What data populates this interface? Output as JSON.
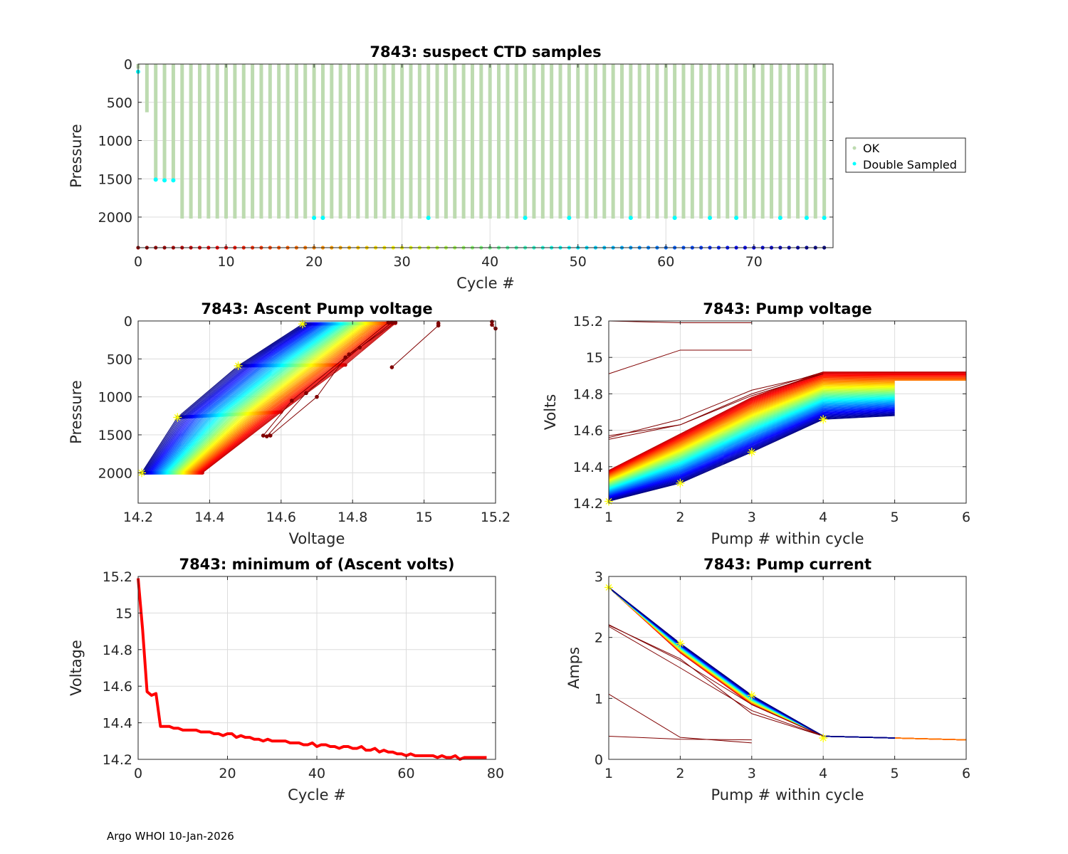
{
  "footer": "Argo WHOI 10-Jan-2026",
  "colors": {
    "ok": "#bddbb0",
    "double_sampled": "#00ffff",
    "min_line": "#ff0000",
    "marker": "#ffff00",
    "grid": "#dcdcdc",
    "axis": "#262626"
  },
  "chart_data": [
    {
      "id": "suspect-ctd",
      "type": "scatter",
      "title": "7843: suspect CTD samples",
      "xlabel": "Cycle #",
      "ylabel": "Pressure",
      "xlim": [
        0,
        79
      ],
      "ylim": [
        2400,
        0
      ],
      "y_reversed": true,
      "xticks": [
        0,
        10,
        20,
        30,
        40,
        50,
        60,
        70
      ],
      "yticks": [
        0,
        500,
        1000,
        1500,
        2000
      ],
      "grid": true,
      "legend": {
        "placement": "outside-right",
        "entries": [
          "OK",
          "Double Sampled"
        ]
      },
      "cycles_first": 0,
      "cycles_last": 78,
      "ok_profile_max_pressure": {
        "0": 60,
        "1": 630,
        "2": 1510,
        "3": 1520,
        "4": 1520,
        "default": 2020
      },
      "double_sampled": [
        {
          "cycle": 0,
          "pressure": 100
        },
        {
          "cycle": 2,
          "pressure": 1510
        },
        {
          "cycle": 3,
          "pressure": 1520
        },
        {
          "cycle": 4,
          "pressure": 1520
        },
        {
          "cycle": 20,
          "pressure": 2010
        },
        {
          "cycle": 21,
          "pressure": 2010
        },
        {
          "cycle": 33,
          "pressure": 2010
        },
        {
          "cycle": 44,
          "pressure": 2010
        },
        {
          "cycle": 49,
          "pressure": 2010
        },
        {
          "cycle": 56,
          "pressure": 2010
        },
        {
          "cycle": 61,
          "pressure": 2010
        },
        {
          "cycle": 65,
          "pressure": 2010
        },
        {
          "cycle": 68,
          "pressure": 2010
        },
        {
          "cycle": 73,
          "pressure": 2010
        },
        {
          "cycle": 76,
          "pressure": 2010
        },
        {
          "cycle": 78,
          "pressure": 2010
        }
      ],
      "cycle_marker_pressure": 2400
    },
    {
      "id": "ascent-pump-voltage",
      "type": "line",
      "title": "7843: Ascent Pump voltage",
      "xlabel": "Voltage",
      "ylabel": "Pressure",
      "xlim": [
        14.2,
        15.2
      ],
      "ylim": [
        2400,
        0
      ],
      "y_reversed": true,
      "xticks": [
        14.2,
        14.4,
        14.6,
        14.8,
        15,
        15.2
      ],
      "xticklabels": [
        "14.2",
        "14.4",
        "14.6",
        "14.8",
        "15",
        "15.2"
      ],
      "yticks": [
        0,
        500,
        1000,
        1500,
        2000
      ],
      "grid": true,
      "colormap": "jet-by-cycle",
      "series_note": "one line per cycle 5-78; points at pressures ~2000, ~1250, ~580, ~50",
      "typical_first_cycle": {
        "voltage": [
          14.38,
          14.6,
          14.78,
          14.92
        ],
        "pressure": [
          2000,
          1200,
          580,
          30
        ]
      },
      "typical_last_cycle": {
        "voltage": [
          14.21,
          14.31,
          14.48,
          14.66
        ],
        "pressure": [
          2000,
          1270,
          590,
          40
        ]
      },
      "early_cycles": [
        {
          "voltage": [
            15.19,
            15.19,
            15.2
          ],
          "pressure": [
            10,
            50,
            100
          ]
        },
        {
          "voltage": [
            14.91,
            15.04,
            15.04
          ],
          "pressure": [
            610,
            60,
            30
          ]
        },
        {
          "voltage": [
            14.55,
            14.63,
            14.79,
            14.9
          ],
          "pressure": [
            1510,
            1050,
            440,
            20
          ]
        },
        {
          "voltage": [
            14.56,
            14.67,
            14.82,
            14.91
          ],
          "pressure": [
            1520,
            950,
            350,
            20
          ]
        },
        {
          "voltage": [
            14.57,
            14.7,
            14.78,
            14.92
          ],
          "pressure": [
            1510,
            1000,
            480,
            20
          ]
        }
      ],
      "highlight_points": [
        {
          "voltage": 14.21,
          "pressure": 2000
        },
        {
          "voltage": 14.31,
          "pressure": 1270
        },
        {
          "voltage": 14.48,
          "pressure": 590
        },
        {
          "voltage": 14.66,
          "pressure": 40
        }
      ]
    },
    {
      "id": "pump-voltage",
      "type": "line",
      "title": "7843: Pump voltage",
      "xlabel": "Pump # within cycle",
      "ylabel": "Volts",
      "xlim": [
        1,
        6
      ],
      "ylim": [
        14.2,
        15.2
      ],
      "xticks": [
        1,
        2,
        3,
        4,
        5,
        6
      ],
      "yticks": [
        14.2,
        14.4,
        14.6,
        14.8,
        15,
        15.2
      ],
      "yticklabels": [
        "14.2",
        "14.4",
        "14.6",
        "14.8",
        "15",
        "15.2"
      ],
      "grid": true,
      "colormap": "jet-by-cycle",
      "typical_first_cycle": [
        14.38,
        14.58,
        14.78,
        14.92,
        14.92,
        14.92
      ],
      "typical_last_cycle": [
        14.21,
        14.31,
        14.48,
        14.66,
        14.68
      ],
      "early_cycles": [
        [
          15.2,
          15.19,
          15.19
        ],
        [
          14.91,
          15.04,
          15.04
        ],
        [
          14.56,
          14.66,
          14.82,
          14.91
        ],
        [
          14.57,
          14.63,
          14.8,
          14.92
        ],
        [
          14.55,
          14.63,
          14.79,
          14.91
        ]
      ],
      "highlight_points": [
        {
          "pump": 1,
          "volts": 14.21
        },
        {
          "pump": 2,
          "volts": 14.31
        },
        {
          "pump": 3,
          "volts": 14.48
        },
        {
          "pump": 4,
          "volts": 14.66
        }
      ]
    },
    {
      "id": "min-ascent-volts",
      "type": "line",
      "title": "7843: minimum of (Ascent volts)",
      "xlabel": "Cycle #",
      "ylabel": "Voltage",
      "xlim": [
        0,
        80
      ],
      "ylim": [
        14.2,
        15.2
      ],
      "xticks": [
        0,
        20,
        40,
        60,
        80
      ],
      "yticks": [
        14.2,
        14.4,
        14.6,
        14.8,
        15,
        15.2
      ],
      "yticklabels": [
        "14.2",
        "14.4",
        "14.6",
        "14.8",
        "15",
        "15.2"
      ],
      "grid": true,
      "x": [
        0,
        1,
        2,
        3,
        4,
        5,
        6,
        7,
        8,
        9,
        10,
        11,
        12,
        13,
        14,
        15,
        16,
        17,
        18,
        19,
        20,
        21,
        22,
        23,
        24,
        25,
        26,
        27,
        28,
        29,
        30,
        31,
        32,
        33,
        34,
        35,
        36,
        37,
        38,
        39,
        40,
        41,
        42,
        43,
        44,
        45,
        46,
        47,
        48,
        49,
        50,
        51,
        52,
        53,
        54,
        55,
        56,
        57,
        58,
        59,
        60,
        61,
        62,
        63,
        64,
        65,
        66,
        67,
        68,
        69,
        70,
        71,
        72,
        73,
        74,
        75,
        76,
        77,
        78
      ],
      "values": [
        15.19,
        14.91,
        14.57,
        14.55,
        14.56,
        14.38,
        14.38,
        14.38,
        14.37,
        14.37,
        14.36,
        14.36,
        14.36,
        14.36,
        14.35,
        14.35,
        14.35,
        14.34,
        14.34,
        14.33,
        14.34,
        14.34,
        14.32,
        14.33,
        14.32,
        14.32,
        14.31,
        14.31,
        14.3,
        14.31,
        14.3,
        14.3,
        14.3,
        14.3,
        14.29,
        14.29,
        14.29,
        14.28,
        14.28,
        14.29,
        14.27,
        14.28,
        14.28,
        14.27,
        14.27,
        14.26,
        14.27,
        14.27,
        14.26,
        14.26,
        14.27,
        14.25,
        14.25,
        14.26,
        14.24,
        14.25,
        14.24,
        14.24,
        14.23,
        14.23,
        14.22,
        14.23,
        14.22,
        14.22,
        14.22,
        14.22,
        14.22,
        14.21,
        14.22,
        14.21,
        14.21,
        14.22,
        14.2,
        14.21,
        14.21,
        14.21,
        14.21,
        14.21,
        14.21
      ]
    },
    {
      "id": "pump-current",
      "type": "line",
      "title": "7843: Pump current",
      "xlabel": "Pump # within cycle",
      "ylabel": "Amps",
      "xlim": [
        1,
        6
      ],
      "ylim": [
        0,
        3
      ],
      "xticks": [
        1,
        2,
        3,
        4,
        5,
        6
      ],
      "yticks": [
        0,
        1,
        2,
        3
      ],
      "grid": true,
      "colormap": "jet-by-cycle",
      "typical_cycle": [
        2.82,
        1.85,
        1.0,
        0.38,
        0.35,
        0.32
      ],
      "early_cycles": [
        [
          0.38,
          0.33,
          0.32
        ],
        [
          1.07,
          0.36,
          0.27
        ],
        [
          2.2,
          1.65,
          0.75,
          0.38
        ],
        [
          2.18,
          1.5,
          0.8,
          0.38
        ],
        [
          2.21,
          1.62,
          0.9,
          0.38
        ]
      ],
      "highlight_points": [
        {
          "pump": 1,
          "amps": 2.82
        },
        {
          "pump": 2,
          "amps": 1.9
        },
        {
          "pump": 3,
          "amps": 1.05
        },
        {
          "pump": 4,
          "amps": 0.35
        }
      ]
    }
  ]
}
